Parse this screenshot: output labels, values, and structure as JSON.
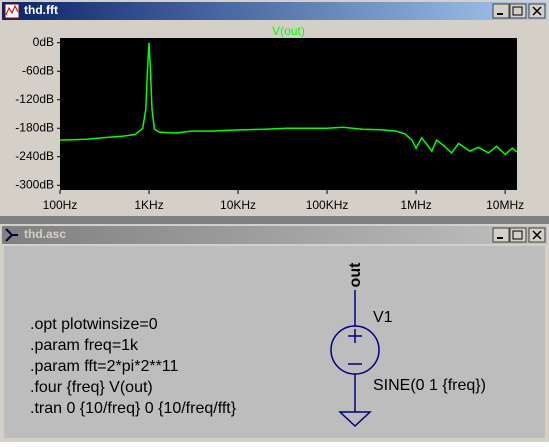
{
  "windows": [
    {
      "title": "thd.fft"
    },
    {
      "title": "thd.asc"
    }
  ],
  "chart_data": {
    "type": "line",
    "log_x": true,
    "grid": false,
    "x": [
      100,
      200,
      300,
      500,
      700,
      850,
      920,
      960,
      1000,
      1040,
      1080,
      1150,
      1300,
      2000,
      3000,
      5000,
      8000,
      12000,
      20000,
      35000,
      60000,
      100000,
      150000,
      250000,
      400000,
      600000,
      750000,
      900000,
      1000000,
      1150000,
      1300000,
      1500000,
      1700000,
      2000000,
      2500000,
      3000000,
      4000000,
      5000000,
      6500000,
      8000000,
      10000000,
      12000000,
      13600000
    ],
    "series": [
      {
        "name": "V(out)",
        "color": "#00ff00",
        "values": [
          -205,
          -203,
          -200,
          -197,
          -193,
          -180,
          -140,
          -60,
          0,
          -60,
          -140,
          -182,
          -188,
          -190,
          -186,
          -186,
          -184,
          -183,
          -182,
          -180,
          -180,
          -180,
          -178,
          -182,
          -183,
          -186,
          -192,
          -205,
          -222,
          -200,
          -212,
          -228,
          -205,
          -215,
          -232,
          -212,
          -228,
          -220,
          -232,
          -218,
          -235,
          -222,
          -230
        ]
      }
    ],
    "xlim": [
      100,
      13600000
    ],
    "ylim": [
      -310,
      10
    ],
    "xticks": [
      {
        "value": 100,
        "label": "100Hz"
      },
      {
        "value": 1000,
        "label": "1KHz"
      },
      {
        "value": 10000,
        "label": "10KHz"
      },
      {
        "value": 100000,
        "label": "100KHz"
      },
      {
        "value": 1000000,
        "label": "1MHz"
      },
      {
        "value": 10000000,
        "label": "10MHz"
      }
    ],
    "yticks": [
      {
        "value": 0,
        "label": "0dB"
      },
      {
        "value": -60,
        "label": "-60dB"
      },
      {
        "value": -120,
        "label": "-120dB"
      },
      {
        "value": -180,
        "label": "-180dB"
      },
      {
        "value": -240,
        "label": "-240dB"
      },
      {
        "value": -300,
        "label": "-300dB"
      }
    ]
  },
  "schematic": {
    "net_label": "out",
    "source_name": "V1",
    "source_value": "SINE(0 1 {freq})",
    "directives": [
      ".opt plotwinsize=0",
      ".param freq=1k",
      ".param fft=2*pi*2**11",
      ".four {freq} V(out)",
      ".tran 0 {10/freq} 0 {10/freq/fft}"
    ]
  }
}
